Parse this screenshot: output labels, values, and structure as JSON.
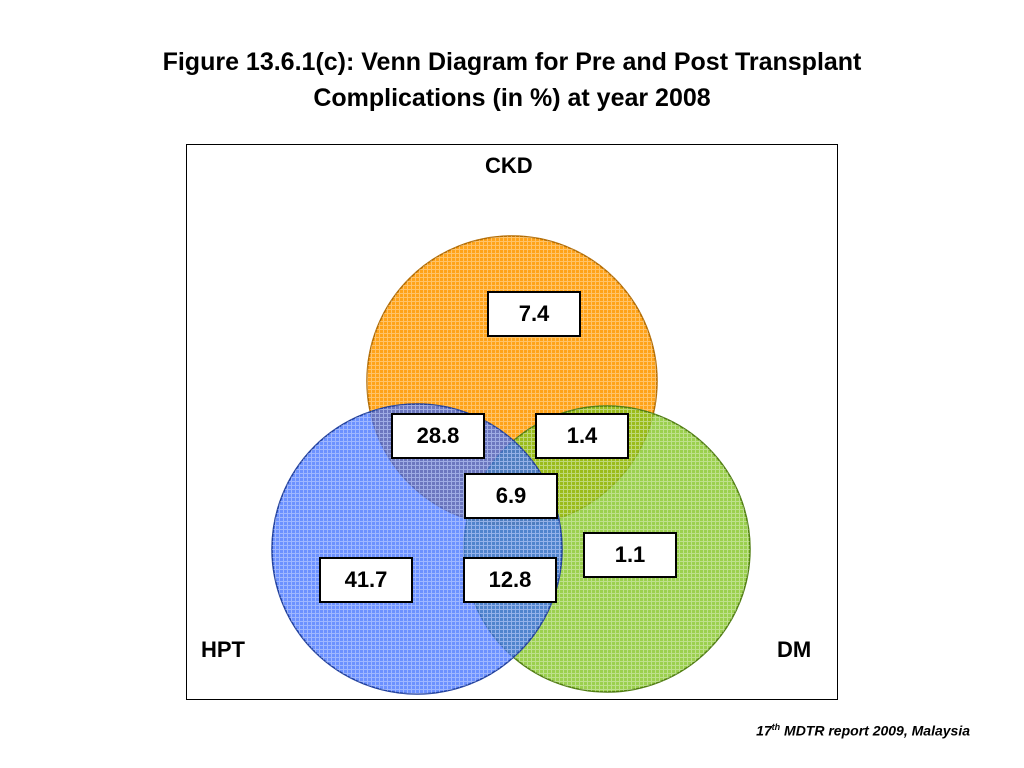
{
  "title": {
    "line1": "Figure 13.6.1(c): Venn Diagram for Pre and Post Transplant",
    "line2": "Complications (in %) at year 2008"
  },
  "sets": {
    "ckd": {
      "label": "CKD",
      "color": "#FF9900"
    },
    "hpt": {
      "label": "HPT",
      "color": "#3366FF"
    },
    "dm": {
      "label": "DM",
      "color": "#7FC31C"
    }
  },
  "regions": {
    "ckd_only": "7.4",
    "ckd_hpt": "28.8",
    "ckd_dm": "1.4",
    "all": "6.9",
    "dm_only": "1.1",
    "hpt_only": "41.7",
    "hpt_dm": "12.8"
  },
  "source": {
    "pre": "17",
    "sup": "th",
    "post": " MDTR report 2009, Malaysia"
  }
}
